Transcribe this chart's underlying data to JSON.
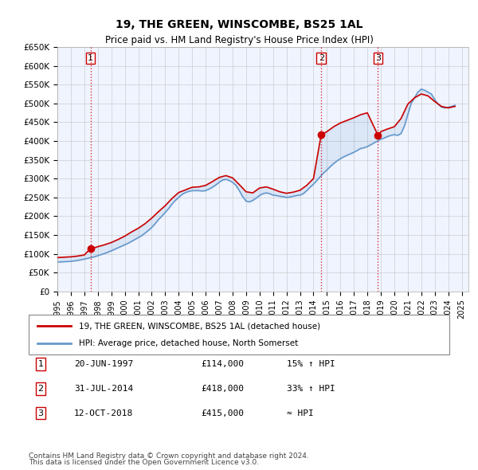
{
  "title": "19, THE GREEN, WINSCOMBE, BS25 1AL",
  "subtitle": "Price paid vs. HM Land Registry's House Price Index (HPI)",
  "ylabel_ticks": [
    "£0",
    "£50K",
    "£100K",
    "£150K",
    "£200K",
    "£250K",
    "£300K",
    "£350K",
    "£400K",
    "£450K",
    "£500K",
    "£550K",
    "£600K",
    "£650K"
  ],
  "ylim": [
    0,
    650000
  ],
  "yticks": [
    0,
    50000,
    100000,
    150000,
    200000,
    250000,
    300000,
    350000,
    400000,
    450000,
    500000,
    550000,
    600000,
    650000
  ],
  "xlim_start": 1995.0,
  "xlim_end": 2025.5,
  "sale_dates": [
    1997.46,
    2014.58,
    2018.79
  ],
  "sale_prices": [
    114000,
    418000,
    415000
  ],
  "sale_labels": [
    "1",
    "2",
    "3"
  ],
  "legend_line1": "19, THE GREEN, WINSCOMBE, BS25 1AL (detached house)",
  "legend_line2": "HPI: Average price, detached house, North Somerset",
  "table_rows": [
    {
      "num": "1",
      "date": "20-JUN-1997",
      "price": "£114,000",
      "hpi": "15% ↑ HPI"
    },
    {
      "num": "2",
      "date": "31-JUL-2014",
      "price": "£418,000",
      "hpi": "33% ↑ HPI"
    },
    {
      "num": "3",
      "date": "12-OCT-2018",
      "price": "£415,000",
      "hpi": "≈ HPI"
    }
  ],
  "footer1": "Contains HM Land Registry data © Crown copyright and database right 2024.",
  "footer2": "This data is licensed under the Open Government Licence v3.0.",
  "red_color": "#cc0000",
  "blue_color": "#6699cc",
  "bg_color": "#f0f4ff",
  "grid_color": "#cccccc",
  "hpi_data_x": [
    1995.0,
    1995.25,
    1995.5,
    1995.75,
    1996.0,
    1996.25,
    1996.5,
    1996.75,
    1997.0,
    1997.25,
    1997.5,
    1997.75,
    1998.0,
    1998.25,
    1998.5,
    1998.75,
    1999.0,
    1999.25,
    1999.5,
    1999.75,
    2000.0,
    2000.25,
    2000.5,
    2000.75,
    2001.0,
    2001.25,
    2001.5,
    2001.75,
    2002.0,
    2002.25,
    2002.5,
    2002.75,
    2003.0,
    2003.25,
    2003.5,
    2003.75,
    2004.0,
    2004.25,
    2004.5,
    2004.75,
    2005.0,
    2005.25,
    2005.5,
    2005.75,
    2006.0,
    2006.25,
    2006.5,
    2006.75,
    2007.0,
    2007.25,
    2007.5,
    2007.75,
    2008.0,
    2008.25,
    2008.5,
    2008.75,
    2009.0,
    2009.25,
    2009.5,
    2009.75,
    2010.0,
    2010.25,
    2010.5,
    2010.75,
    2011.0,
    2011.25,
    2011.5,
    2011.75,
    2012.0,
    2012.25,
    2012.5,
    2012.75,
    2013.0,
    2013.25,
    2013.5,
    2013.75,
    2014.0,
    2014.25,
    2014.5,
    2014.75,
    2015.0,
    2015.25,
    2015.5,
    2015.75,
    2016.0,
    2016.25,
    2016.5,
    2016.75,
    2017.0,
    2017.25,
    2017.5,
    2017.75,
    2018.0,
    2018.25,
    2018.5,
    2018.75,
    2019.0,
    2019.25,
    2019.5,
    2019.75,
    2020.0,
    2020.25,
    2020.5,
    2020.75,
    2021.0,
    2021.25,
    2021.5,
    2021.75,
    2022.0,
    2022.25,
    2022.5,
    2022.75,
    2023.0,
    2023.25,
    2023.5,
    2023.75,
    2024.0,
    2024.25,
    2024.5
  ],
  "hpi_data_y": [
    78000,
    78500,
    79000,
    79500,
    80000,
    81000,
    82500,
    84000,
    86000,
    88000,
    90000,
    92000,
    95000,
    98000,
    101000,
    104000,
    108000,
    112000,
    116000,
    120000,
    124000,
    128000,
    133000,
    138000,
    143000,
    148000,
    155000,
    162000,
    170000,
    180000,
    191000,
    200000,
    210000,
    220000,
    232000,
    242000,
    250000,
    258000,
    263000,
    266000,
    268000,
    268000,
    268000,
    267000,
    268000,
    272000,
    277000,
    283000,
    290000,
    296000,
    298000,
    295000,
    290000,
    282000,
    268000,
    252000,
    240000,
    238000,
    242000,
    248000,
    255000,
    260000,
    262000,
    260000,
    256000,
    255000,
    253000,
    252000,
    250000,
    251000,
    253000,
    255000,
    256000,
    260000,
    268000,
    277000,
    285000,
    295000,
    305000,
    315000,
    323000,
    332000,
    340000,
    347000,
    353000,
    358000,
    362000,
    366000,
    370000,
    375000,
    380000,
    382000,
    385000,
    390000,
    395000,
    400000,
    405000,
    408000,
    412000,
    415000,
    417000,
    415000,
    420000,
    440000,
    470000,
    500000,
    515000,
    530000,
    538000,
    535000,
    530000,
    525000,
    510000,
    498000,
    490000,
    488000,
    490000,
    492000,
    495000
  ],
  "red_data_x": [
    1995.0,
    1995.5,
    1996.0,
    1996.5,
    1997.0,
    1997.46,
    1997.75,
    1998.0,
    1998.5,
    1999.0,
    1999.5,
    2000.0,
    2000.5,
    2001.0,
    2001.5,
    2002.0,
    2002.5,
    2003.0,
    2003.5,
    2004.0,
    2004.5,
    2005.0,
    2005.5,
    2006.0,
    2006.5,
    2007.0,
    2007.5,
    2008.0,
    2008.5,
    2009.0,
    2009.5,
    2010.0,
    2010.5,
    2011.0,
    2011.5,
    2012.0,
    2012.5,
    2013.0,
    2013.5,
    2014.0,
    2014.58,
    2014.75,
    2015.0,
    2015.5,
    2016.0,
    2016.5,
    2017.0,
    2017.5,
    2018.0,
    2018.79,
    2019.0,
    2019.5,
    2020.0,
    2020.5,
    2021.0,
    2021.5,
    2022.0,
    2022.5,
    2023.0,
    2023.5,
    2024.0,
    2024.5
  ],
  "red_data_y": [
    90000,
    91000,
    92000,
    94000,
    97000,
    114000,
    116000,
    119000,
    124000,
    130000,
    138000,
    147000,
    158000,
    168000,
    180000,
    195000,
    212000,
    228000,
    247000,
    263000,
    270000,
    277000,
    278000,
    282000,
    292000,
    303000,
    308000,
    302000,
    284000,
    265000,
    262000,
    275000,
    278000,
    272000,
    265000,
    261000,
    264000,
    269000,
    282000,
    300000,
    418000,
    420000,
    425000,
    438000,
    448000,
    455000,
    462000,
    470000,
    475000,
    415000,
    425000,
    432000,
    438000,
    460000,
    498000,
    515000,
    525000,
    520000,
    505000,
    492000,
    488000,
    492000
  ]
}
